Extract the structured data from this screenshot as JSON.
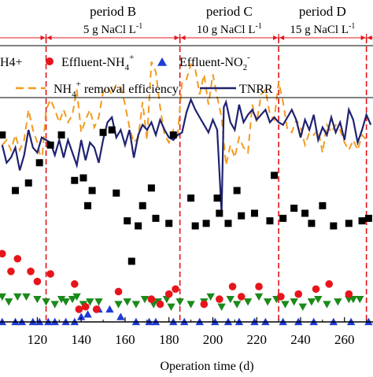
{
  "chart_data": {
    "type": "scatter",
    "xlabel": "Operation time (d)",
    "xlim": [
      103,
      273
    ],
    "x_ticks": [
      "120",
      "140",
      "160",
      "180",
      "200",
      "220",
      "240",
      "260"
    ],
    "x_tick_values": [
      120,
      140,
      160,
      180,
      200,
      220,
      240,
      260
    ],
    "periods": [
      {
        "name": "period B",
        "condition": "5 g NaCl L",
        "unit_sup": "-1",
        "start": 124,
        "end": 185
      },
      {
        "name": "period C",
        "condition": "10 g NaCl L",
        "unit_sup": "-1",
        "start": 185,
        "end": 230
      },
      {
        "name": "period D",
        "condition": "15 g NaCl L",
        "unit_sup": "-1",
        "start": 230,
        "end": 270
      }
    ],
    "boundaries": [
      124,
      185,
      230,
      270
    ],
    "legend": {
      "influent_partial": "H4+",
      "effluent_nh4_base": "Effluent-NH",
      "effluent_nh4_sub": "4",
      "effluent_nh4_sup": "+",
      "effluent_no2_base": "Effluent-NO",
      "effluent_no2_sub": "2",
      "effluent_no2_sup": "-",
      "removal_base": "NH",
      "removal_sub": "4",
      "removal_sup": "+",
      "removal_rest": " removal efficiency",
      "tnrr": "TNRR",
      "placement": "top"
    },
    "colors": {
      "influent": "#000000",
      "effluent_nh4": "#e8141b",
      "effluent_no2": "#1f3bd6",
      "effluent_no3": "#1a8a1a",
      "removal_efficiency": "#f39a1e",
      "tnrr": "#1f2270",
      "boundary": "#e0141b"
    },
    "y_scale": {
      "bottom": 409,
      "top": 88
    },
    "series": [
      {
        "key": "influent",
        "marker": "square",
        "x": [
          104,
          110,
          116,
          121,
          126,
          131,
          137,
          141,
          143,
          145,
          150,
          154,
          156,
          161,
          163,
          166,
          168,
          172,
          174,
          180,
          182,
          190,
          192,
          197,
          202,
          203,
          207,
          211,
          213,
          219,
          226,
          228,
          232,
          237,
          242,
          245,
          250,
          255,
          262,
          268,
          271
        ],
        "y": [
          74,
          52,
          55,
          63,
          70,
          74,
          56,
          57,
          46,
          52,
          75,
          76,
          51,
          40,
          24,
          38,
          46,
          53,
          41,
          39,
          74,
          49,
          38,
          39,
          49,
          43,
          39,
          52,
          42,
          43,
          40,
          58,
          41,
          45,
          43,
          39,
          46,
          38,
          39,
          40,
          41
        ]
      },
      {
        "key": "effluent_nh4",
        "marker": "circle",
        "x": [
          104,
          108,
          111,
          117,
          120,
          126,
          137,
          139,
          142,
          147,
          157,
          172,
          176,
          180,
          183,
          196,
          203,
          209,
          213,
          221,
          231,
          239,
          247,
          253,
          262
        ],
        "y": [
          27,
          20,
          25,
          20,
          16,
          19,
          15,
          5,
          6,
          5,
          12,
          9,
          7,
          11,
          13,
          7,
          9,
          14,
          10,
          14,
          10,
          11,
          13,
          15,
          11
        ]
      },
      {
        "key": "effluent_no2",
        "marker": "triangle-up",
        "x": [
          104,
          110,
          113,
          118,
          121,
          125,
          128,
          133,
          137,
          140,
          143,
          148,
          153,
          158,
          165,
          171,
          174,
          182,
          187,
          194,
          201,
          207,
          212,
          219,
          224,
          232,
          239,
          246,
          255,
          263,
          271
        ],
        "y": [
          0,
          0,
          0,
          0,
          0,
          0,
          0,
          0,
          0,
          2,
          3,
          5,
          5,
          2,
          0,
          0,
          0,
          0,
          0,
          0,
          0,
          0,
          0,
          0,
          0,
          0,
          0,
          0,
          0,
          0,
          0
        ]
      },
      {
        "key": "effluent_no3",
        "marker": "triangle-down",
        "x": [
          104,
          107,
          111,
          115,
          120,
          124,
          128,
          131,
          133,
          136,
          138,
          141,
          144,
          148,
          157,
          161,
          165,
          169,
          173,
          175,
          179,
          181,
          185,
          190,
          196,
          199,
          204,
          208,
          211,
          216,
          221,
          225,
          229,
          233,
          237,
          241,
          245,
          248,
          252,
          257,
          262,
          264,
          267
        ],
        "y": [
          10,
          8,
          10,
          10,
          9,
          8,
          7,
          9,
          8,
          9,
          10,
          7,
          8,
          8,
          7,
          8,
          7,
          9,
          7,
          8,
          9,
          6,
          8,
          7,
          8,
          10,
          6,
          9,
          7,
          8,
          10,
          8,
          9,
          7,
          8,
          6,
          8,
          9,
          7,
          8,
          9,
          9,
          9
        ]
      },
      {
        "key": "removal_efficiency",
        "style": "dashed",
        "x": [
          104,
          106,
          108,
          110,
          112,
          114,
          116,
          118,
          120,
          122,
          124,
          126,
          128,
          130,
          132,
          134,
          136,
          138,
          140,
          142,
          144,
          146,
          148,
          150,
          152,
          154,
          156,
          158,
          160,
          162,
          164,
          166,
          168,
          170,
          172,
          174,
          176,
          178,
          180,
          182,
          184,
          186,
          188,
          190,
          192,
          194,
          196,
          198,
          200,
          202,
          204,
          206,
          208,
          210,
          212,
          214,
          216,
          218,
          220,
          222,
          224,
          226,
          228,
          230,
          232,
          234,
          236,
          238,
          240,
          242,
          244,
          246,
          248,
          250,
          252,
          254,
          256,
          258,
          260,
          262,
          264,
          266,
          268,
          270
        ],
        "y": [
          70,
          72,
          68,
          74,
          68,
          72,
          84,
          76,
          71,
          63,
          84,
          88,
          84,
          79,
          84,
          79,
          82,
          92,
          75,
          80,
          84,
          77,
          81,
          91,
          93,
          90,
          94,
          93,
          86,
          77,
          71,
          73,
          87,
          72,
          103,
          99,
          85,
          74,
          71,
          76,
          74,
          95,
          96,
          102,
          100,
          90,
          98,
          86,
          98,
          89,
          81,
          62,
          70,
          65,
          73,
          69,
          67,
          86,
          79,
          90,
          92,
          82,
          80,
          95,
          87,
          76,
          75,
          80,
          77,
          70,
          75,
          74,
          76,
          67,
          78,
          75,
          78,
          76,
          71,
          68,
          72,
          68,
          74,
          72
        ]
      },
      {
        "key": "tnrr",
        "style": "solid",
        "x": [
          104,
          106,
          108,
          110,
          112,
          114,
          116,
          118,
          120,
          122,
          124,
          126,
          128,
          130,
          132,
          134,
          136,
          138,
          140,
          142,
          144,
          146,
          148,
          150,
          152,
          154,
          156,
          158,
          160,
          162,
          164,
          166,
          168,
          170,
          172,
          174,
          176,
          178,
          180,
          182,
          184,
          186,
          188,
          190,
          192,
          194,
          196,
          198,
          200,
          202,
          204,
          205,
          206,
          208,
          210,
          212,
          214,
          216,
          218,
          220,
          222,
          224,
          226,
          228,
          230,
          232,
          234,
          236,
          238,
          240,
          242,
          244,
          246,
          248,
          250,
          252,
          254,
          256,
          258,
          260,
          262,
          264,
          266,
          268,
          270,
          272
        ],
        "y": [
          70,
          63,
          65,
          69,
          60,
          66,
          76,
          69,
          67,
          73,
          72,
          71,
          66,
          72,
          65,
          72,
          67,
          62,
          72,
          64,
          71,
          69,
          63,
          72,
          79,
          81,
          73,
          76,
          70,
          76,
          65,
          74,
          78,
          76,
          79,
          74,
          80,
          76,
          73,
          72,
          74,
          75,
          83,
          88,
          84,
          81,
          78,
          75,
          80,
          76,
          43,
          85,
          87,
          79,
          76,
          86,
          79,
          82,
          84,
          80,
          82,
          84,
          79,
          81,
          79,
          78,
          81,
          84,
          80,
          73,
          80,
          76,
          82,
          72,
          77,
          74,
          81,
          75,
          79,
          72,
          84,
          80,
          71,
          76,
          82,
          78
        ]
      }
    ]
  }
}
